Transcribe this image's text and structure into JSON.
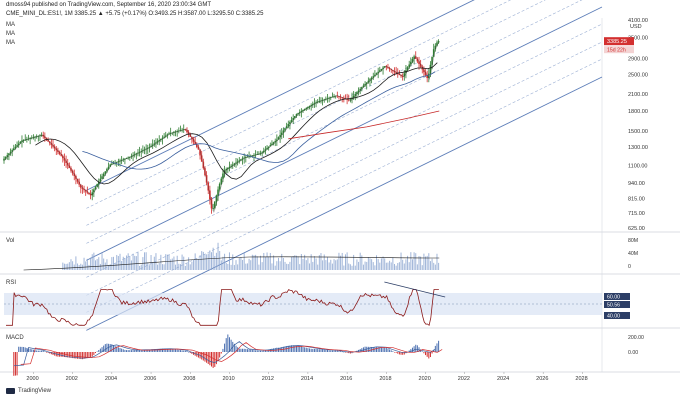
{
  "header": {
    "publisher": "dmoss94 published on TradingView.com, September 16, 2020 23:00:34 GMT",
    "symbol_line": "CME_MINI_DL:ES1!, 1M  3385.25  ▲ +5.75 (+0.17%)  O:3493.25  H:3587.00  L:3295.50  C:3385.25",
    "ma_labels": [
      "MA",
      "MA",
      "MA"
    ],
    "currency": "USD"
  },
  "panes": {
    "vol": "Vol",
    "rsi": "RSI",
    "macd": "MACD"
  },
  "price_axis": {
    "ticks": [
      "4100.00",
      "3500.00",
      "2900.00",
      "2500.00",
      "2100.00",
      "1800.00",
      "1500.00",
      "1300.00",
      "1100.00",
      "940.00",
      "815.00",
      "715.00",
      "625.00"
    ],
    "last_price": "3385.25",
    "countdown": "15d 22h",
    "accent": "#e03a3a"
  },
  "vol_axis": [
    "80M",
    "40M",
    "0"
  ],
  "rsi_axis": [
    "60.00",
    "50.56",
    "40.00"
  ],
  "macd_axis": [
    "200.00",
    "0.00"
  ],
  "x_axis": [
    "2000",
    "2002",
    "2004",
    "2006",
    "2008",
    "2010",
    "2012",
    "2014",
    "2016",
    "2018",
    "2020",
    "2022",
    "2024",
    "2026",
    "2028"
  ],
  "footer": {
    "brand": "TradingView"
  },
  "colors": {
    "up": "#2e7d32",
    "down": "#d32f2f",
    "price_line": "#1b1b1b",
    "ma_blue": "#3a5f9e",
    "ma_red": "#c62828",
    "channel": "#4a6fb0",
    "rsi_band": "#d8e2f3",
    "rsi_line": "#8b1a1a"
  },
  "chart_data": {
    "type": "line",
    "title": "CME_MINI_DL:ES1!, 1M",
    "x": [
      1998.5,
      1999.5,
      2000.5,
      2001.5,
      2002.5,
      2003.0,
      2004.0,
      2005.0,
      2006.0,
      2007.0,
      2007.8,
      2008.5,
      2009.2,
      2009.8,
      2010.8,
      2011.7,
      2012.5,
      2013.5,
      2014.5,
      2015.5,
      2016.2,
      2017.0,
      2018.0,
      2018.9,
      2019.5,
      2020.2,
      2020.5,
      2020.7
    ],
    "series": [
      {
        "values": [
          1150,
          1380,
          1450,
          1200,
          900,
          840,
          1110,
          1190,
          1300,
          1470,
          1530,
          1270,
          720,
          1050,
          1180,
          1230,
          1390,
          1750,
          1950,
          2070,
          1980,
          2300,
          2700,
          2450,
          2950,
          2400,
          3150,
          3385
        ]
      }
    ],
    "ylim": [
      625,
      4100
    ],
    "xlim": [
      1998.5,
      2029.0
    ]
  }
}
